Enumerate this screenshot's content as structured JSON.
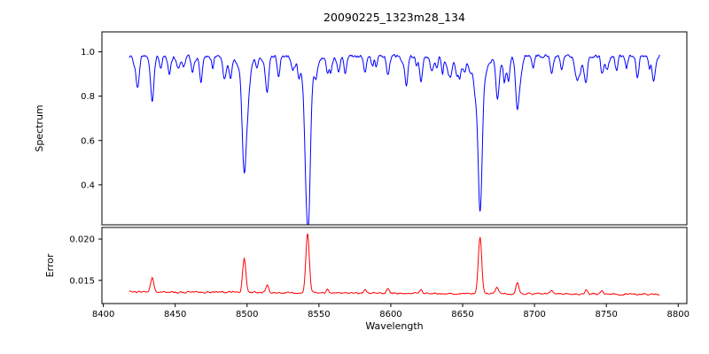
{
  "chart_data": {
    "type": "line",
    "title": "20090225_1323m28_134",
    "xlabel": "Wavelength",
    "xlim": [
      8399,
      8806
    ],
    "data_x_range": [
      8418,
      8787
    ],
    "x_ticks": [
      8400,
      8450,
      8500,
      8550,
      8600,
      8650,
      8700,
      8750,
      8800
    ],
    "x_tick_labels": [
      "8400",
      "8450",
      "8500",
      "8550",
      "8600",
      "8650",
      "8700",
      "8750",
      "8800"
    ],
    "seed": 20090225,
    "axis_color": "#000000",
    "background": "#ffffff",
    "panels": [
      {
        "ylabel": "Spectrum",
        "color": "#0000ff",
        "ylim": [
          0.22,
          1.09
        ],
        "yticks": [
          0.4,
          0.6,
          0.8,
          1.0
        ],
        "ytick_labels": [
          "0.4",
          "0.6",
          "0.8",
          "1.0"
        ],
        "continuum": 0.98,
        "noise_amp": 0.013,
        "weak_lines": {
          "count": 46,
          "depth_min": 0.02,
          "depth_max": 0.09,
          "sigma_min": 0.7,
          "sigma_max": 1.6
        },
        "lines": [
          [
            8424,
            0.1,
            1.0
          ],
          [
            8434,
            0.2,
            1.2
          ],
          [
            8440,
            0.06,
            0.8
          ],
          [
            8446,
            0.08,
            1.0
          ],
          [
            8456,
            0.05,
            0.9
          ],
          [
            8462,
            0.05,
            0.8
          ],
          [
            8468,
            0.11,
            1.0
          ],
          [
            8476,
            0.05,
            0.8
          ],
          [
            8484,
            0.07,
            0.9
          ],
          [
            8498.0,
            0.42,
            1.3
          ],
          [
            8498.0,
            0.1,
            3.5
          ],
          [
            8507,
            0.05,
            0.8
          ],
          [
            8514,
            0.15,
            1.1
          ],
          [
            8522,
            0.09,
            0.9
          ],
          [
            8536,
            0.05,
            0.8
          ],
          [
            8542.1,
            0.58,
            1.5
          ],
          [
            8542.1,
            0.12,
            4.5
          ],
          [
            8548,
            0.05,
            0.9
          ],
          [
            8556,
            0.07,
            0.9
          ],
          [
            8564,
            0.05,
            0.8
          ],
          [
            8582,
            0.07,
            0.9
          ],
          [
            8590,
            0.05,
            0.8
          ],
          [
            8598,
            0.09,
            1.0
          ],
          [
            8611,
            0.06,
            0.9
          ],
          [
            8621,
            0.11,
            1.0
          ],
          [
            8632,
            0.05,
            0.8
          ],
          [
            8642,
            0.05,
            0.8
          ],
          [
            8648,
            0.07,
            0.9
          ],
          [
            8662.1,
            0.56,
            1.4
          ],
          [
            8662.1,
            0.12,
            4.0
          ],
          [
            8674,
            0.16,
            1.1
          ],
          [
            8682,
            0.06,
            0.8
          ],
          [
            8688,
            0.22,
            1.2
          ],
          [
            8699,
            0.05,
            0.8
          ],
          [
            8712,
            0.08,
            0.9
          ],
          [
            8719,
            0.06,
            0.8
          ],
          [
            8736,
            0.08,
            0.9
          ],
          [
            8747,
            0.07,
            0.9
          ],
          [
            8757,
            0.06,
            0.9
          ],
          [
            8764,
            0.05,
            0.8
          ],
          [
            8772,
            0.06,
            0.9
          ],
          [
            8780,
            0.05,
            0.8
          ]
        ]
      },
      {
        "ylabel": "Error",
        "color": "#ff0000",
        "ylim": [
          0.0122,
          0.0214
        ],
        "yticks": [
          0.015,
          0.02
        ],
        "ytick_labels": [
          "0.015",
          "0.020"
        ],
        "baseline": 0.0136,
        "slope": -8e-07,
        "noise_amp": 0.00016,
        "peaks": [
          [
            8434,
            0.0018,
            1.1
          ],
          [
            8498,
            0.0041,
            1.1
          ],
          [
            8514,
            0.0009,
            1.0
          ],
          [
            8542.1,
            0.0072,
            1.2
          ],
          [
            8556,
            0.0004,
            0.9
          ],
          [
            8582,
            0.0004,
            0.9
          ],
          [
            8598,
            0.0005,
            0.9
          ],
          [
            8621,
            0.0005,
            0.9
          ],
          [
            8662.1,
            0.0068,
            1.2
          ],
          [
            8674,
            0.0007,
            1.0
          ],
          [
            8688,
            0.0013,
            1.0
          ],
          [
            8712,
            0.0004,
            0.9
          ],
          [
            8736,
            0.0005,
            0.9
          ],
          [
            8747,
            0.0004,
            0.9
          ]
        ]
      }
    ]
  }
}
